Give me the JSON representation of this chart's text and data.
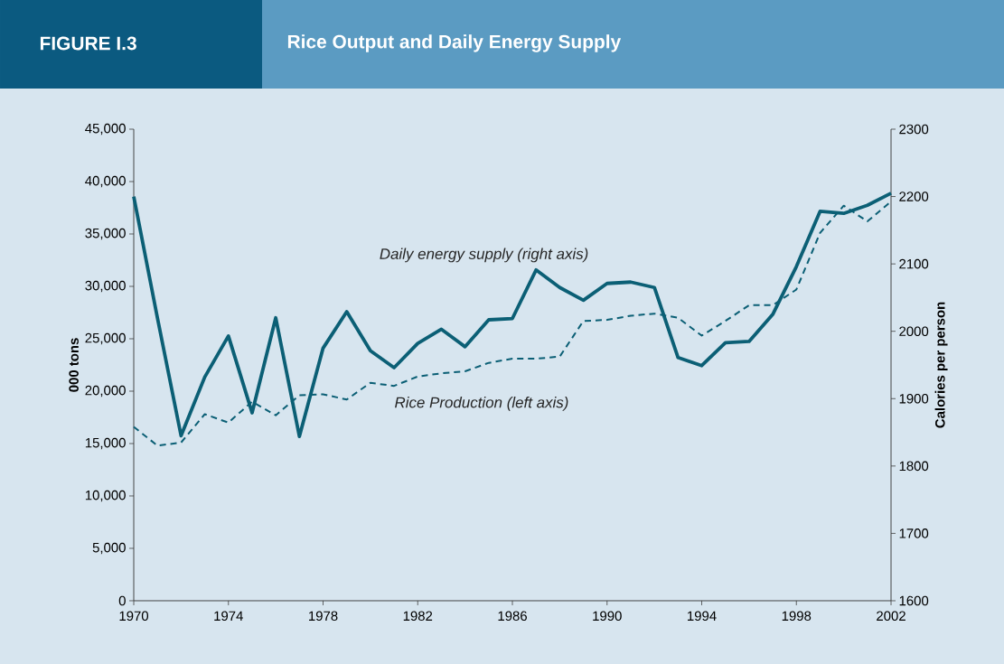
{
  "chart_data": {
    "type": "line",
    "title": "Rice Output and Daily Energy Supply",
    "annotations": [
      "FIGURE I.3"
    ],
    "x": [
      1970,
      1971,
      1972,
      1973,
      1974,
      1975,
      1976,
      1977,
      1978,
      1979,
      1980,
      1981,
      1982,
      1983,
      1984,
      1985,
      1986,
      1987,
      1988,
      1989,
      1990,
      1991,
      1992,
      1993,
      1994,
      1995,
      1996,
      1997,
      1998,
      1999,
      2000,
      2001,
      2002
    ],
    "ylabel": "000 tons",
    "y2label": "Calories per person",
    "series": [
      {
        "name": "Rice Production (left axis)",
        "color": "#0b5f75",
        "line_style": "dashed",
        "values": [
          16600,
          14800,
          15100,
          17800,
          17000,
          19000,
          17700,
          19600,
          19700,
          19200,
          20800,
          20500,
          21400,
          21700,
          21900,
          22700,
          23100,
          23100,
          23300,
          26700,
          26800,
          27200,
          27400,
          27000,
          25300,
          26700,
          28200,
          28200,
          29700,
          35100,
          37700,
          36200,
          38100
        ]
      },
      {
        "name": "Daily energy supply (right axis)",
        "color": "#0b5f75",
        "line_style": "solid",
        "axis": "y2",
        "values": [
          2200,
          2020,
          1845,
          1932,
          1993,
          1879,
          2020,
          1844,
          1975,
          2029,
          1971,
          1946,
          1982,
          2003,
          1977,
          2017,
          2019,
          2091,
          2065,
          2046,
          2071,
          2073,
          2065,
          1961,
          1949,
          1983,
          1985,
          2025,
          2096,
          2178,
          2175,
          2187,
          2205
        ]
      }
    ],
    "xlim": [
      1970,
      2002
    ],
    "xticks": [
      1970,
      1974,
      1978,
      1982,
      1986,
      1990,
      1994,
      1998,
      2002
    ],
    "ylim": [
      0,
      45000
    ],
    "yticks": [
      0,
      {
        "value": 5000,
        "label": "5,000"
      },
      {
        "value": 10000,
        "label": "10,000"
      },
      {
        "value": 15000,
        "label": "15,000"
      },
      {
        "value": 20000,
        "label": "20,000"
      },
      {
        "value": 25000,
        "label": "25,000"
      },
      {
        "value": 30000,
        "label": "30,000"
      },
      {
        "value": 35000,
        "label": "35,000"
      },
      {
        "value": 40000,
        "label": "40,000"
      },
      {
        "value": 45000,
        "label": "45,000"
      }
    ],
    "y2lim": [
      1600,
      2300
    ],
    "y2ticks": [
      1600,
      1700,
      1800,
      1900,
      2000,
      2100,
      2200,
      2300
    ],
    "legend": false,
    "grid": false
  }
}
